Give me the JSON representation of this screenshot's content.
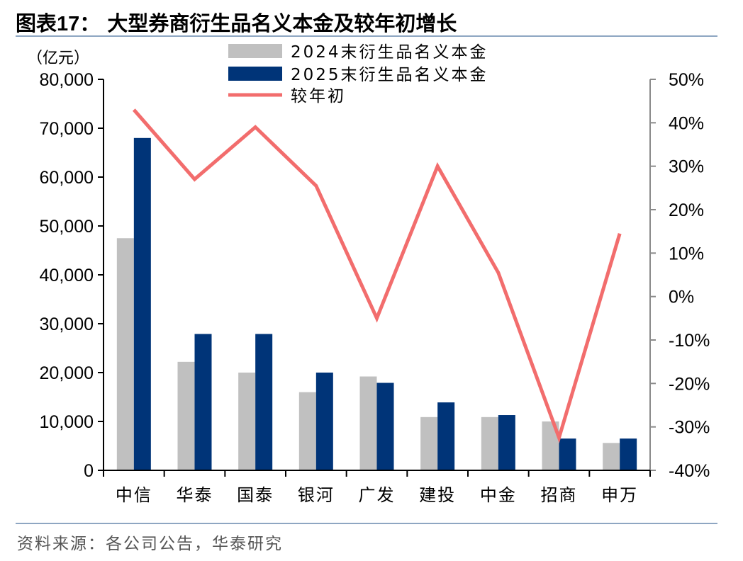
{
  "title": {
    "prefix": "图表",
    "number": "17：",
    "text": "大型券商衍生品名义本金及较年初增长"
  },
  "unit_label": "（亿元）",
  "source": "资料来源：各公司公告，华泰研究",
  "colors": {
    "s2024": "#c0c0c0",
    "s2025": "#003478",
    "growth": "#f26d6d",
    "axis": "#000000",
    "right_axis": "#8a8a8a"
  },
  "chart_data": {
    "type": "bar",
    "categories": [
      "中信",
      "华泰",
      "国泰",
      "银河",
      "广发",
      "建投",
      "中金",
      "招商",
      "申万"
    ],
    "series": [
      {
        "name": "2024末衍生品名义本金",
        "type": "bar",
        "axis": "left",
        "values": [
          47500,
          22200,
          20000,
          16000,
          19200,
          10900,
          10900,
          10000,
          5600
        ]
      },
      {
        "name": "2025末衍生品名义本金",
        "type": "bar",
        "axis": "left",
        "values": [
          68000,
          27900,
          27900,
          20000,
          17900,
          13900,
          11300,
          6500,
          6500
        ]
      },
      {
        "name": "较年初",
        "type": "line",
        "axis": "right",
        "values": [
          43.0,
          27.0,
          39.0,
          25.5,
          -5.0,
          30.0,
          5.5,
          -32.5,
          14.5
        ]
      }
    ],
    "y_left": {
      "min": 0,
      "max": 80000,
      "ticks": [
        0,
        10000,
        20000,
        30000,
        40000,
        50000,
        60000,
        70000,
        80000
      ],
      "tick_labels": [
        "0",
        "10,000",
        "20,000",
        "30,000",
        "40,000",
        "50,000",
        "60,000",
        "70,000",
        "80,000"
      ]
    },
    "y_right": {
      "min": -40,
      "max": 50,
      "ticks": [
        -40,
        -30,
        -20,
        -10,
        0,
        10,
        20,
        30,
        40,
        50
      ],
      "tick_labels": [
        "-40%",
        "-30%",
        "-20%",
        "-10%",
        "0%",
        "10%",
        "20%",
        "30%",
        "40%",
        "50%"
      ]
    },
    "legend_position": "top-center",
    "grid": false
  }
}
